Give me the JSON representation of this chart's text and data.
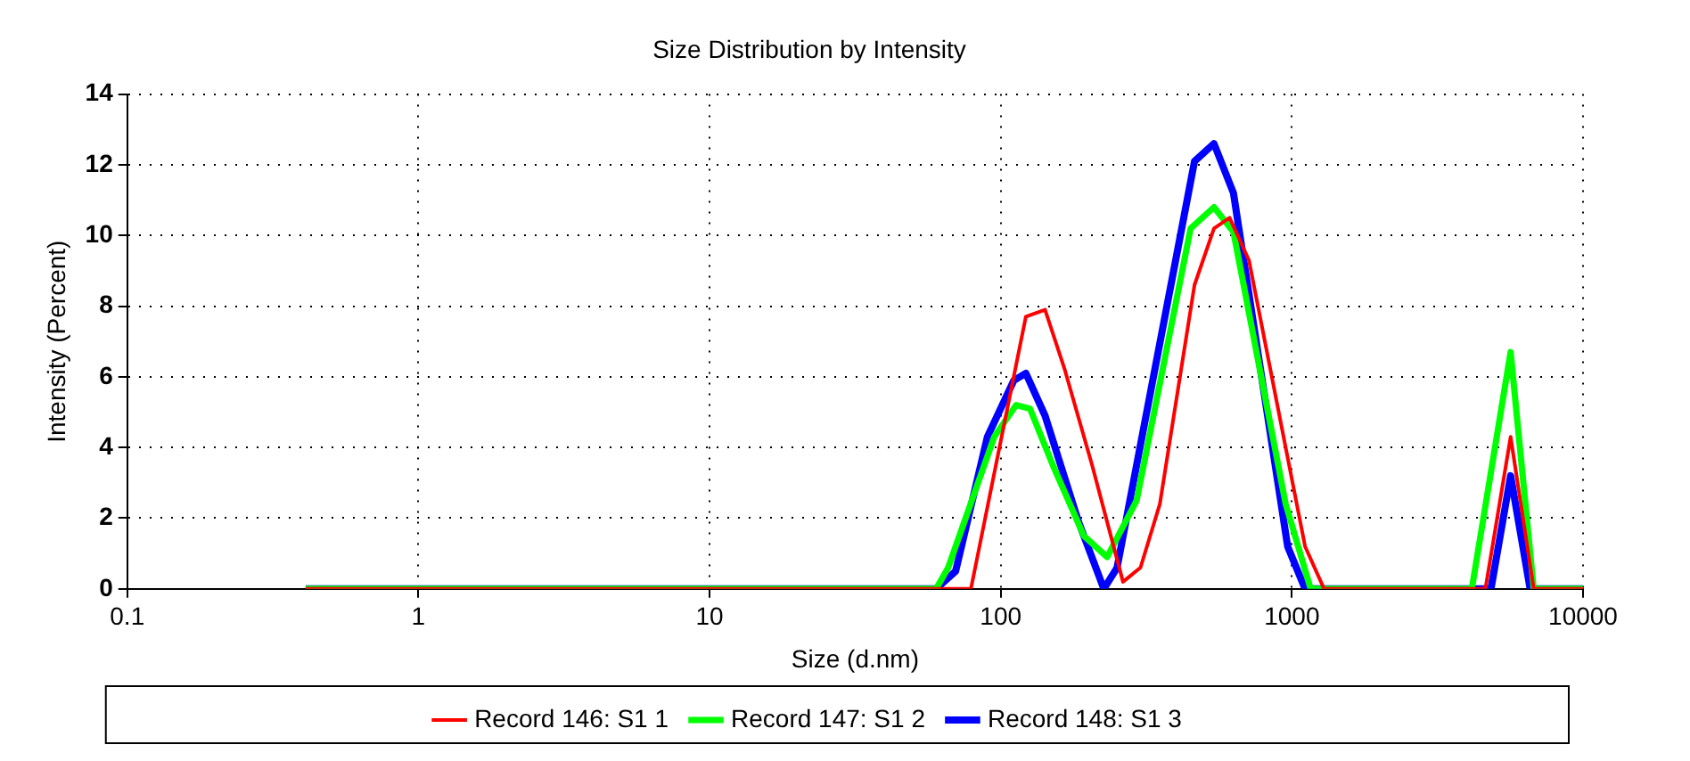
{
  "chart_data": {
    "type": "line",
    "title": "Size Distribution by Intensity",
    "xlabel": "Size (d.nm)",
    "ylabel": "Intensity (Percent)",
    "log": "x",
    "xlim": [
      0.1,
      10000
    ],
    "xticks": [
      0.1,
      1,
      10,
      100,
      1000,
      10000
    ],
    "ylim": [
      0,
      14
    ],
    "yticks": [
      0,
      2,
      4,
      6,
      8,
      10,
      12,
      14
    ],
    "grid": true,
    "legend": "bottom",
    "marker": "none",
    "line_style": "solid",
    "series": [
      {
        "name": "Record 146: S1 1",
        "color": "#ff0000",
        "x": [
          0.41,
          79,
          122,
          142,
          166,
          206,
          263,
          302,
          352,
          463,
          540,
          611,
          712,
          1110,
          1290,
          4620,
          5640,
          6770,
          10000
        ],
        "values": [
          0,
          0,
          7.7,
          7.9,
          6.2,
          3.5,
          0.2,
          0.6,
          2.4,
          8.6,
          10.2,
          10.5,
          9.3,
          1.2,
          0,
          0,
          4.3,
          0,
          0
        ]
      },
      {
        "name": "Record 147: S1 2",
        "color": "#00ff00",
        "x": [
          0.41,
          60,
          66,
          95,
          113,
          126,
          151,
          193,
          232,
          293,
          449,
          540,
          630,
          952,
          1160,
          4150,
          5640,
          6770,
          10000
        ],
        "values": [
          0,
          0,
          0.6,
          4.3,
          5.2,
          5.1,
          3.5,
          1.5,
          0.9,
          2.5,
          10.2,
          10.8,
          10.1,
          2.4,
          0,
          0,
          6.7,
          0,
          0
        ]
      },
      {
        "name": "Record 148: S1 3",
        "color": "#0000ff",
        "x": [
          0.41,
          60,
          70,
          90,
          111,
          122,
          142,
          185,
          226,
          251,
          463,
          540,
          630,
          967,
          1110,
          4830,
          5640,
          6580,
          10000
        ],
        "values": [
          0,
          0,
          0.5,
          4.3,
          5.9,
          6.1,
          4.9,
          1.9,
          0,
          0.6,
          12.1,
          12.6,
          11.2,
          1.2,
          0,
          0,
          3.2,
          0,
          0
        ]
      }
    ]
  }
}
